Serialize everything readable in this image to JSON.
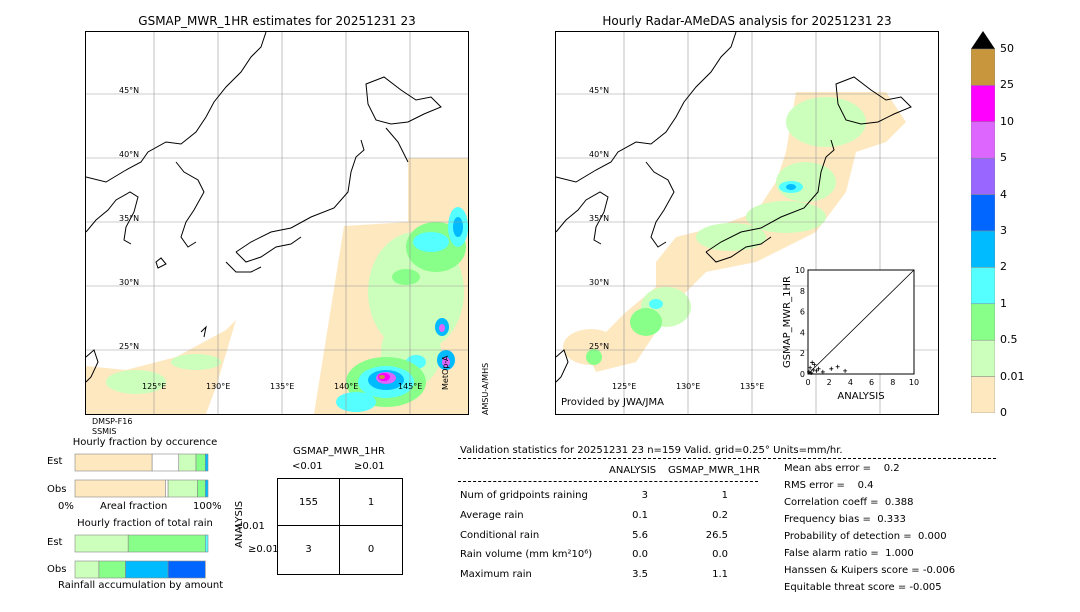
{
  "left_map": {
    "title": "GSMAP_MWR_1HR estimates for 20251231 23",
    "lat_labels": [
      "45°N",
      "40°N",
      "35°N",
      "30°N",
      "25°N"
    ],
    "lon_labels": [
      "125°E",
      "130°E",
      "135°E",
      "140°E",
      "145°E"
    ],
    "sensor_label_1": "DMSP-F16",
    "sensor_label_2": "SSMIS",
    "side_label_1": "MetOp-A",
    "side_label_2": "AMSU-A/MHS"
  },
  "right_map": {
    "title": "Hourly Radar-AMeDAS analysis for 20251231 23",
    "lat_labels": [
      "45°N",
      "40°N",
      "35°N",
      "30°N",
      "25°N"
    ],
    "lon_labels": [
      "125°E",
      "130°E",
      "135°E"
    ],
    "credit": "Provided by JWA/JMA"
  },
  "colorbar": {
    "labels": [
      "50",
      "25",
      "10",
      "5",
      "4",
      "3",
      "2",
      "1",
      "0.5",
      "0.01",
      "0"
    ],
    "colors": [
      "#c8963c",
      "#ff00ff",
      "#dd66ff",
      "#9966ff",
      "#0066ff",
      "#00bbff",
      "#55ffff",
      "#88ff88",
      "#ccffbb",
      "#fde8c0"
    ],
    "top_color": "#000000"
  },
  "chart_data": [
    {
      "type": "scatter",
      "xlabel": "ANALYSIS",
      "ylabel": "GSMAP_MWR_1HR",
      "xlim": [
        0,
        10
      ],
      "ylim": [
        0,
        10
      ],
      "x_ticks": [
        "0",
        "2",
        "4",
        "6",
        "8",
        "10"
      ],
      "y_ticks": [
        "0",
        "2",
        "4",
        "6",
        "8",
        "10"
      ],
      "points": [
        {
          "x": 0.1,
          "y": 0.2
        },
        {
          "x": 0.3,
          "y": 0.1
        },
        {
          "x": 0.5,
          "y": 0.4
        },
        {
          "x": 0.2,
          "y": 0.6
        },
        {
          "x": 0.8,
          "y": 0.3
        },
        {
          "x": 1.0,
          "y": 0.5
        },
        {
          "x": 0.6,
          "y": 0.9
        },
        {
          "x": 2.2,
          "y": 0.5
        },
        {
          "x": 2.8,
          "y": 0.7
        },
        {
          "x": 3.5,
          "y": 0.3
        },
        {
          "x": 0.4,
          "y": 1.1
        },
        {
          "x": 1.4,
          "y": 0.2
        }
      ]
    },
    {
      "type": "bar",
      "title": "Hourly fraction by occurence",
      "categories": [
        "Est",
        "Obs"
      ],
      "xlabel": "Areal fraction",
      "x_ticks": [
        "0%",
        "100%"
      ],
      "series": [
        {
          "colors": [
            "#fde8c0",
            "#ffffff",
            "#ccffbb",
            "#88ff88",
            "#00bbff"
          ],
          "values_est": [
            0.58,
            0.2,
            0.13,
            0.07,
            0.02
          ],
          "values_obs": [
            0.68,
            0.02,
            0.22,
            0.06,
            0.02
          ]
        }
      ]
    },
    {
      "type": "bar",
      "title": "Hourly fraction of total rain",
      "categories": [
        "Est",
        "Obs"
      ],
      "xlabel": "Rainfall accumulation by amount",
      "series": [
        {
          "colors": [
            "#ccffbb",
            "#88ff88",
            "#55ffff",
            "#00bbff",
            "#0066ff"
          ],
          "values_est": [
            0.4,
            0.58,
            0.02,
            0.0,
            0.0
          ],
          "values_obs": [
            0.18,
            0.2,
            0.0,
            0.32,
            0.28
          ]
        }
      ]
    },
    {
      "type": "table",
      "title": "GSMAP_MWR_1HR",
      "col_labels": [
        "<0.01",
        "≥0.01"
      ],
      "row_axis_label": "ANALYSIS",
      "row_labels": [
        "<0.01",
        "≥0.01"
      ],
      "cells": [
        [
          "155",
          "1"
        ],
        [
          "3",
          "0"
        ]
      ]
    }
  ],
  "stats": {
    "header": "Validation statistics for 20251231 23  n=159 Valid. grid=0.25° Units=mm/hr.",
    "col_analysis": "ANALYSIS",
    "col_gsmap": "GSMAP_MWR_1HR",
    "rows": [
      {
        "label": "Num of gridpoints raining",
        "a": "3",
        "g": "1"
      },
      {
        "label": "Average rain",
        "a": "0.1",
        "g": "0.2"
      },
      {
        "label": "Conditional rain",
        "a": "5.6",
        "g": "26.5"
      },
      {
        "label": "Rain volume (mm km²10⁶)",
        "a": "0.0",
        "g": "0.0"
      },
      {
        "label": "Maximum rain",
        "a": "3.5",
        "g": "1.1"
      }
    ],
    "scores": [
      "Mean abs error =    0.2",
      "RMS error =    0.4",
      "Correlation coeff =  0.388",
      "Frequency bias =  0.333",
      "Probability of detection =  0.000",
      "False alarm ratio =  1.000",
      "Hanssen & Kuipers score = -0.006",
      "Equitable threat score = -0.005"
    ]
  }
}
